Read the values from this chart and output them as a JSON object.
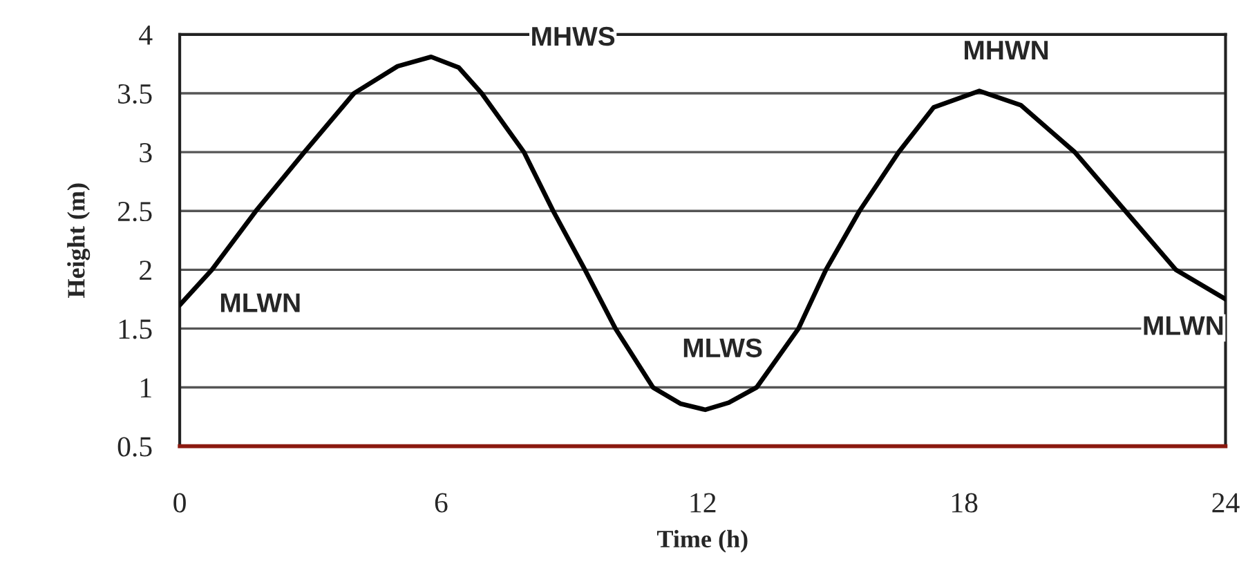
{
  "chart_data": {
    "type": "line",
    "xlabel": "Time (h)",
    "ylabel": "Height (m)",
    "x": [
      0,
      0.74,
      1.75,
      2.86,
      4.0,
      5.0,
      5.77,
      6.4,
      6.93,
      7.9,
      8.57,
      9.3,
      10.0,
      10.86,
      11.5,
      12.06,
      12.6,
      13.24,
      14.2,
      14.83,
      15.6,
      16.5,
      17.3,
      18.35,
      19.3,
      20.54,
      21.7,
      22.86,
      24
    ],
    "series": [
      {
        "color": "#000000",
        "values": [
          1.7,
          2.0,
          2.5,
          3.0,
          3.5,
          3.73,
          3.81,
          3.72,
          3.5,
          3.0,
          2.5,
          2.0,
          1.5,
          1.0,
          0.86,
          0.81,
          0.87,
          1.0,
          1.5,
          2.0,
          2.5,
          3.0,
          3.38,
          3.52,
          3.4,
          3.0,
          2.5,
          2.0,
          1.75
        ]
      }
    ],
    "xlim": [
      0,
      24
    ],
    "xticks": [
      0,
      6,
      12,
      18,
      24
    ],
    "ylim": [
      0.5,
      4
    ],
    "yticks": [
      {
        "value": 0.5,
        "label": "0.5"
      },
      1,
      {
        "value": 1.5,
        "label": "1.5"
      },
      2,
      {
        "value": 2.5,
        "label": "2.5"
      },
      3,
      {
        "value": 3.5,
        "label": "3.5"
      },
      4
    ],
    "grid": "y",
    "marker": "none",
    "line_style": "solid",
    "annotations": [
      "MHWS",
      {
        "text": "MLWN",
        "x": 0,
        "y": 1.7
      },
      {
        "text": "MLWS",
        "x": 12.06,
        "y": 0.81
      },
      {
        "text": "MHWN",
        "x": 18.35,
        "y": 3.52
      },
      {
        "text": "MLWN",
        "x": 24,
        "y": 1.75
      }
    ]
  }
}
